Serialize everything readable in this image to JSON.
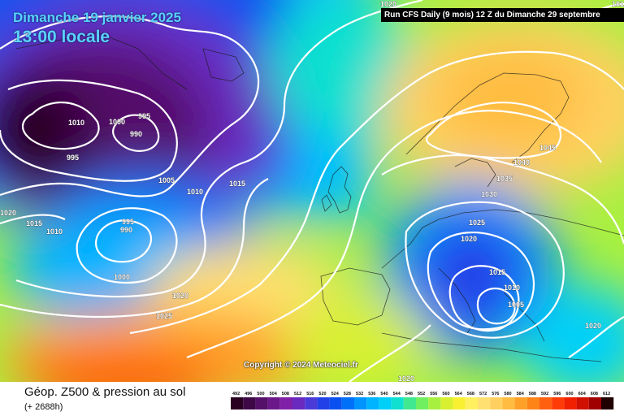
{
  "header": {
    "date": "Dimanche 19 janvier 2025",
    "local_time": "13:00 locale",
    "run_info": "Run CFS Daily (9 mois) 12 Z du Dimanche 29 septembre"
  },
  "map": {
    "copyright": "Copyright © 2024 Meteociel.fr",
    "isobar_labels": [
      "1020",
      "1010",
      "1000",
      "995",
      "990",
      "995",
      "1005",
      "1010",
      "1015",
      "1020",
      "1015",
      "1010",
      "995",
      "990",
      "1000",
      "1020",
      "1025",
      "1045",
      "1040",
      "1035",
      "1030",
      "1025",
      "1020",
      "1015",
      "1010",
      "1005",
      "1020",
      "1020",
      "101"
    ],
    "colors": {
      "low": "#2a0030",
      "high": "#ff4000",
      "isobar": "#ffffff"
    }
  },
  "footer": {
    "product": "Géop. Z500 & pression au sol",
    "lead_time": "(+ 2688h)"
  },
  "legend": {
    "scale_labels": [
      "492",
      "496",
      "500",
      "504",
      "508",
      "512",
      "516",
      "520",
      "524",
      "528",
      "532",
      "536",
      "540",
      "544",
      "548",
      "552",
      "556",
      "560",
      "564",
      "568",
      "572",
      "576",
      "580",
      "584",
      "588",
      "592",
      "596",
      "600",
      "604",
      "608",
      "612"
    ],
    "colors": [
      "#2a0020",
      "#3e0846",
      "#55106a",
      "#6c188a",
      "#8020a8",
      "#6a2ac0",
      "#4a3ad8",
      "#2240e8",
      "#0a50f0",
      "#0070f8",
      "#0094ff",
      "#00b4ff",
      "#00d0f8",
      "#10e0d0",
      "#40e890",
      "#70f060",
      "#a8f040",
      "#d8f030",
      "#f8f030",
      "#fff060",
      "#ffe070",
      "#ffd060",
      "#ffbc40",
      "#ffa028",
      "#ff8418",
      "#ff6010",
      "#ff3c08",
      "#f02000",
      "#d01000",
      "#a00000",
      "#200000"
    ]
  }
}
